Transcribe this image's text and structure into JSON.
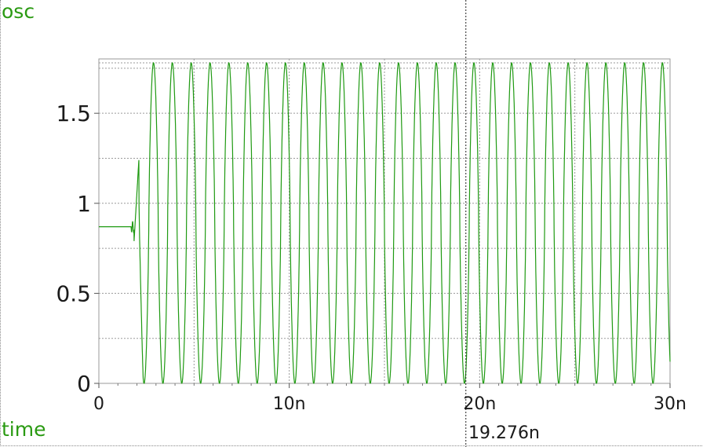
{
  "signal_label": "osc",
  "x_axis_label": "time",
  "cursor_readout": "19.276n",
  "colors": {
    "trace": "#1f9a12",
    "grid": "#9a9a9a",
    "cursor": "#222222",
    "label": "#2a9a12"
  },
  "chart_data": {
    "type": "line",
    "title": "",
    "xlabel": "time",
    "ylabel": "osc",
    "xlim": [
      0,
      30
    ],
    "ylim": [
      0,
      1.78
    ],
    "x_unit": "n",
    "x_ticks": [
      {
        "value": 0,
        "label": "0"
      },
      {
        "value": 10,
        "label": "10n"
      },
      {
        "value": 20,
        "label": "20n"
      },
      {
        "value": 30,
        "label": "30n"
      }
    ],
    "y_ticks": [
      {
        "value": 0,
        "label": "0"
      },
      {
        "value": 0.5,
        "label": "0.5"
      },
      {
        "value": 1,
        "label": "1"
      },
      {
        "value": 1.5,
        "label": "1.5"
      }
    ],
    "grid": true,
    "cursor_x": 19.276,
    "series": [
      {
        "name": "osc",
        "initial_level": 0.87,
        "oscillation_start": 1.85,
        "period": 0.99,
        "min": 0.0,
        "max": 1.78,
        "first_peak": 2.87
      }
    ]
  }
}
